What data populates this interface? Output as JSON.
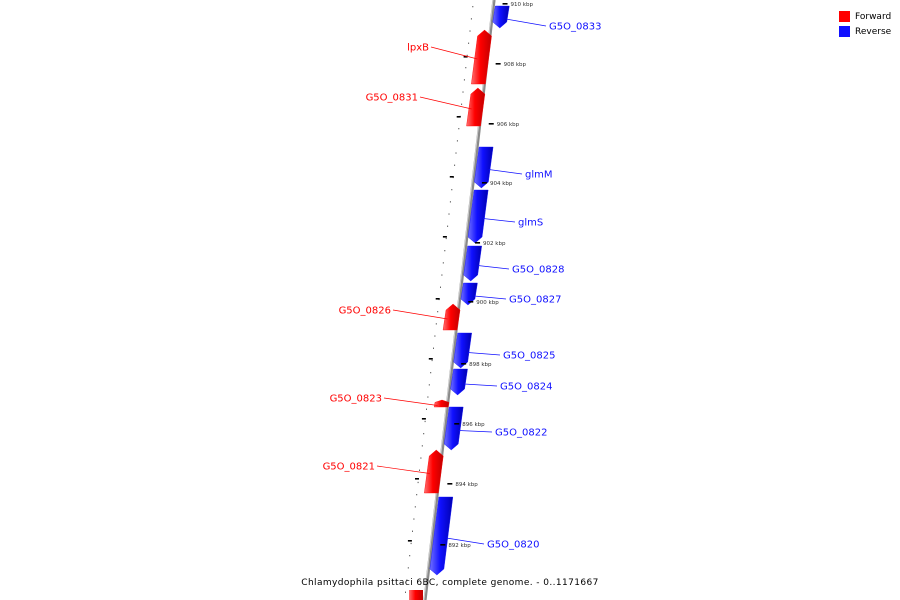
{
  "legend": {
    "forward_label": "Forward",
    "reverse_label": "Reverse",
    "forward_color": "#ff0000",
    "reverse_color": "#1010ff"
  },
  "caption": "Chlamydophila psittaci 6BC, complete genome. - 0..1171667",
  "ticks": [
    {
      "label": "910 kbp"
    },
    {
      "label": "908 kbp"
    },
    {
      "label": "906 kbp"
    },
    {
      "label": "904 kbp"
    },
    {
      "label": "902 kbp"
    },
    {
      "label": "900 kbp"
    },
    {
      "label": "898 kbp"
    },
    {
      "label": "896 kbp"
    },
    {
      "label": "894 kbp"
    },
    {
      "label": "892 kbp"
    }
  ],
  "genes": [
    {
      "name": "G5O_0833",
      "strand": "reverse"
    },
    {
      "name": "lpxB",
      "strand": "forward"
    },
    {
      "name": "G5O_0831",
      "strand": "forward"
    },
    {
      "name": "glmM",
      "strand": "reverse"
    },
    {
      "name": "glmS",
      "strand": "reverse"
    },
    {
      "name": "G5O_0828",
      "strand": "reverse"
    },
    {
      "name": "G5O_0827",
      "strand": "reverse"
    },
    {
      "name": "G5O_0826",
      "strand": "forward"
    },
    {
      "name": "G5O_0825",
      "strand": "reverse"
    },
    {
      "name": "G5O_0824",
      "strand": "reverse"
    },
    {
      "name": "G5O_0823",
      "strand": "forward"
    },
    {
      "name": "G5O_0822",
      "strand": "reverse"
    },
    {
      "name": "G5O_0821",
      "strand": "forward"
    },
    {
      "name": "G5O_0820",
      "strand": "reverse"
    }
  ]
}
